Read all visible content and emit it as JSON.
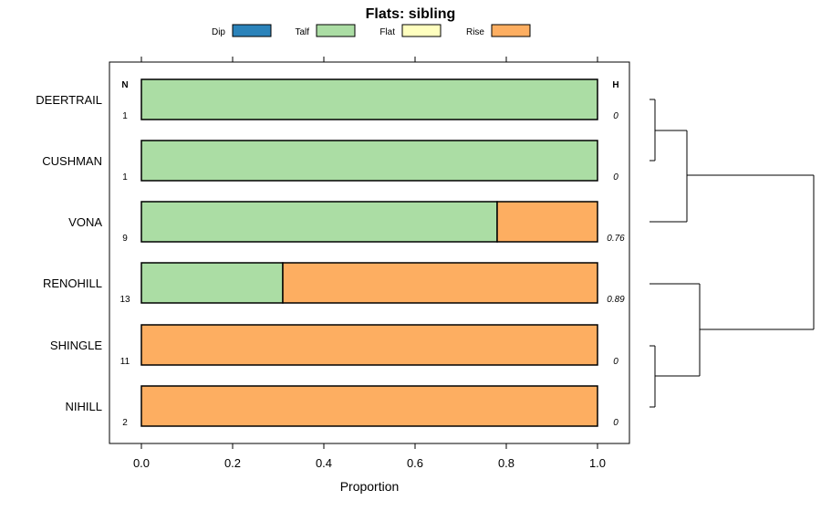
{
  "chart_data": {
    "type": "bar",
    "orientation": "horizontal",
    "stacked": true,
    "title": "Flats: sibling",
    "xlabel": "Proportion",
    "ylabel": "",
    "xlim": [
      0,
      1
    ],
    "xticks": [
      "0.0",
      "0.2",
      "0.4",
      "0.6",
      "0.8",
      "1.0"
    ],
    "categories": [
      "DEERTRAIL",
      "CUSHMAN",
      "VONA",
      "RENOHILL",
      "SHINGLE",
      "NIHILL"
    ],
    "series": [
      {
        "name": "Dip",
        "color": "#2b83ba",
        "values": [
          0,
          0,
          0,
          0,
          0,
          0
        ]
      },
      {
        "name": "Talf",
        "color": "#abdda4",
        "values": [
          1,
          1,
          0.78,
          0.31,
          0,
          0
        ]
      },
      {
        "name": "Flat",
        "color": "#ffffbf",
        "values": [
          0,
          0,
          0,
          0,
          0,
          0
        ]
      },
      {
        "name": "Rise",
        "color": "#fdae61",
        "values": [
          0,
          0,
          0.22,
          0.69,
          1,
          1
        ]
      }
    ],
    "legend_position": "top",
    "n_header": "N",
    "n_values": [
      "1",
      "1",
      "9",
      "13",
      "11",
      "2"
    ],
    "h_header": "H",
    "h_values": [
      "0",
      "0",
      "0.76",
      "0.89",
      "0",
      "0"
    ],
    "dendrogram": {
      "clusters": [
        [
          "DEERTRAIL",
          "CUSHMAN",
          "VONA"
        ],
        [
          "RENOHILL",
          "SHINGLE",
          "NIHILL"
        ]
      ]
    }
  }
}
